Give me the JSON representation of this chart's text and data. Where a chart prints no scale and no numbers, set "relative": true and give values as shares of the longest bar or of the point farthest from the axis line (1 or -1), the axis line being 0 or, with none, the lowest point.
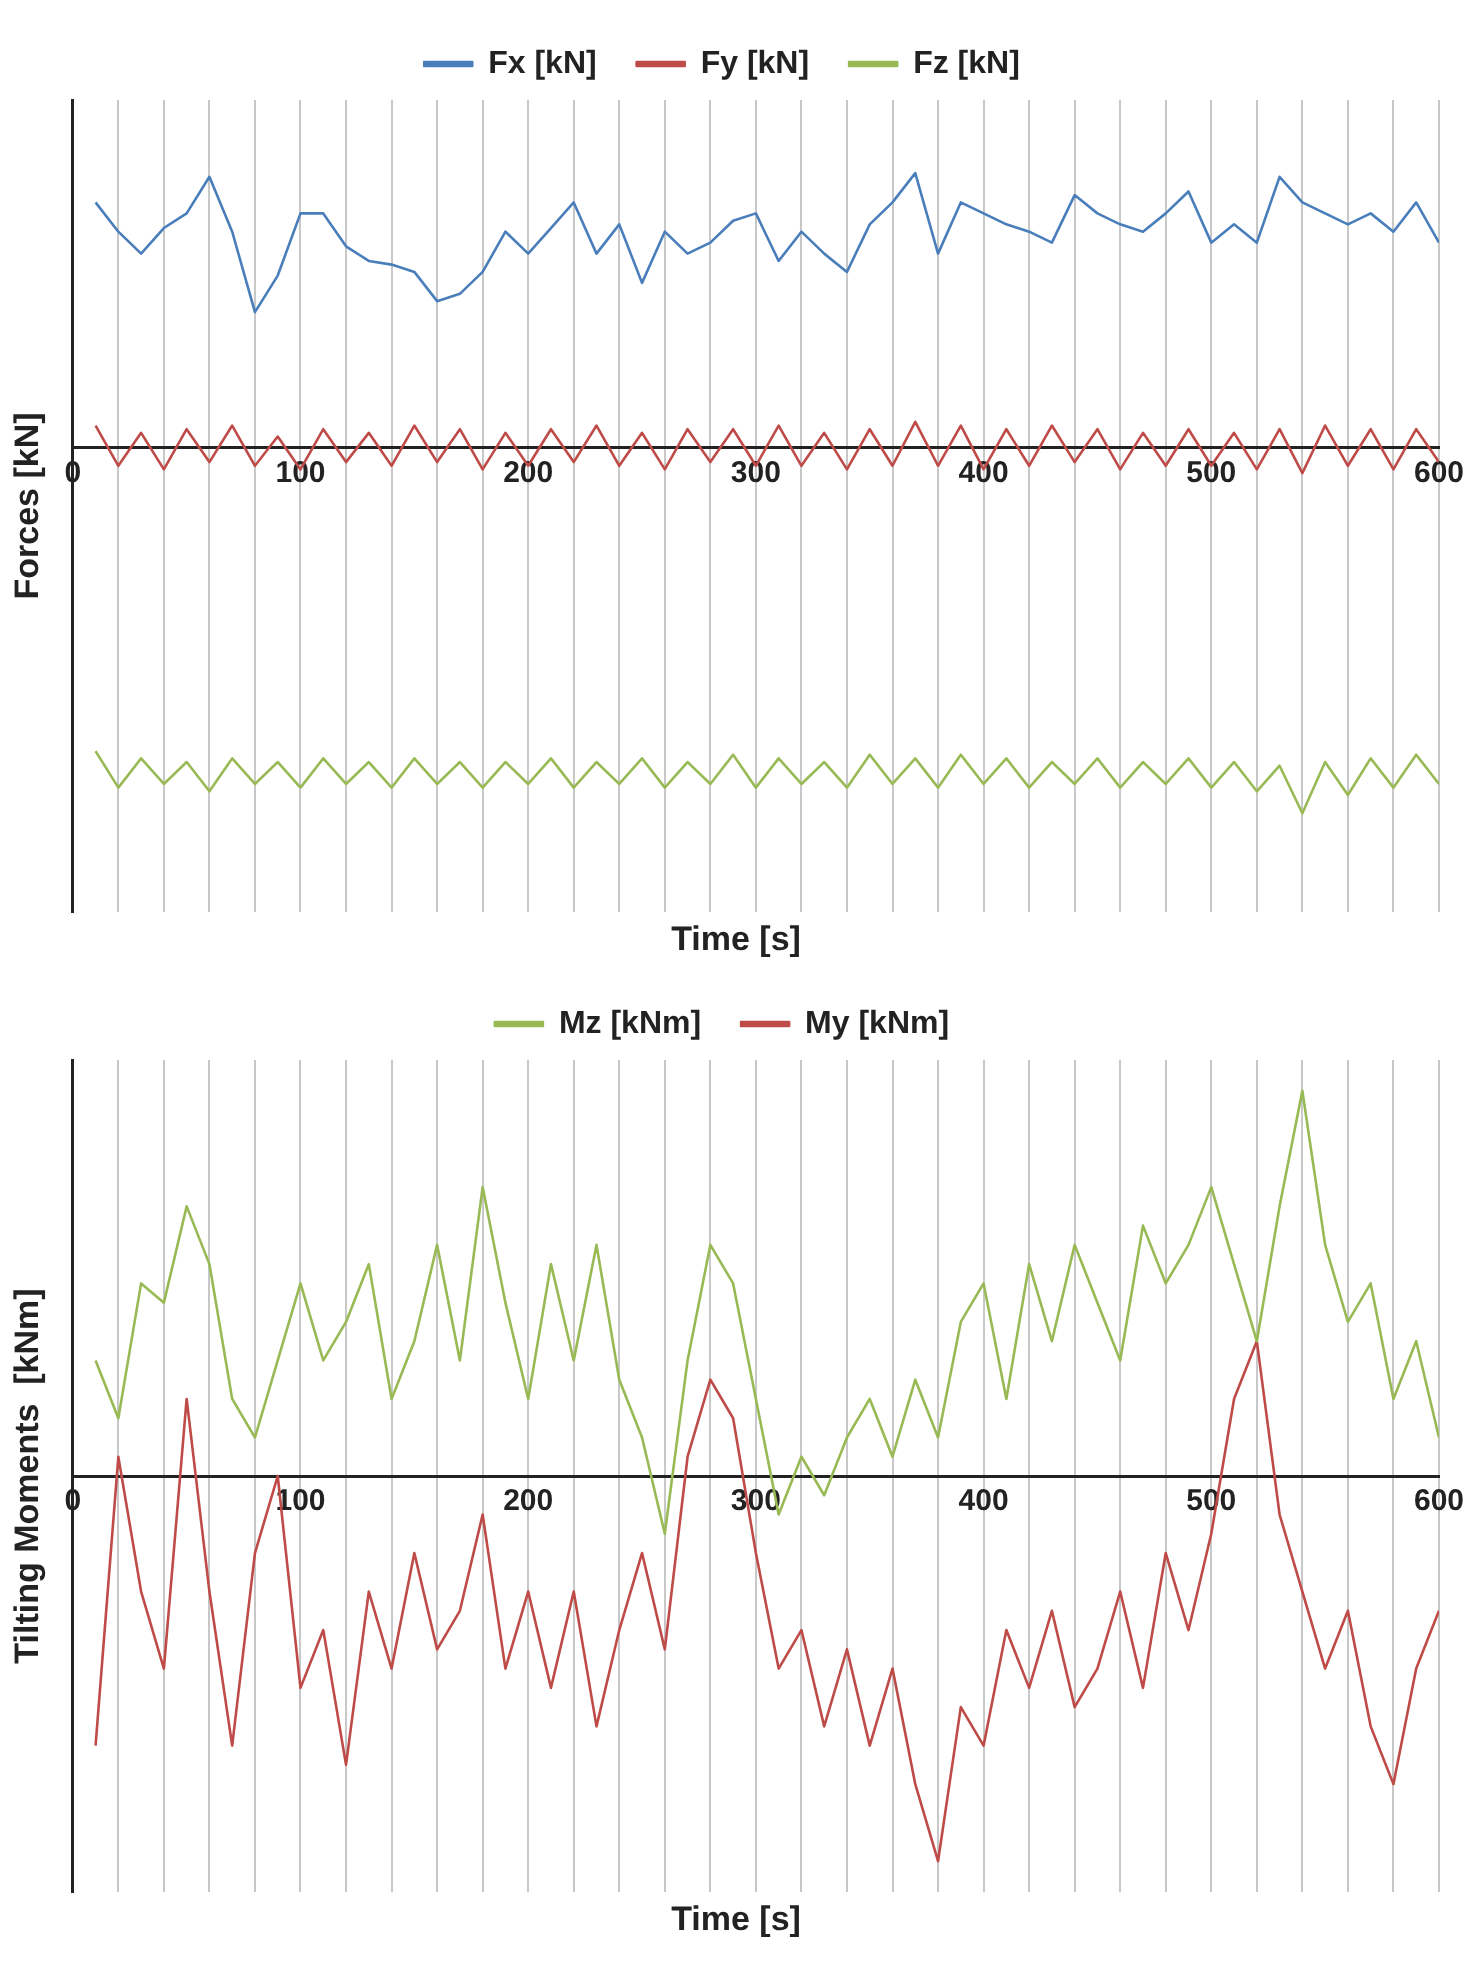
{
  "chart_data": [
    {
      "type": "line",
      "xlabel": "Time [s]",
      "ylabel": "Forces [kN]",
      "relative": true,
      "grid": "x",
      "legend": "top",
      "marker": "none",
      "line_style": "solid",
      "xlim": [
        0,
        600
      ],
      "xticks": [
        0,
        {
          "value": 20,
          "label": null
        },
        {
          "value": 40,
          "label": null
        },
        {
          "value": 60,
          "label": null
        },
        {
          "value": 80,
          "label": null
        },
        100,
        {
          "value": 120,
          "label": null
        },
        {
          "value": 140,
          "label": null
        },
        {
          "value": 160,
          "label": null
        },
        {
          "value": 180,
          "label": null
        },
        200,
        {
          "value": 220,
          "label": null
        },
        {
          "value": 240,
          "label": null
        },
        {
          "value": 260,
          "label": null
        },
        {
          "value": 280,
          "label": null
        },
        300,
        {
          "value": 320,
          "label": null
        },
        {
          "value": 340,
          "label": null
        },
        {
          "value": 360,
          "label": null
        },
        {
          "value": 380,
          "label": null
        },
        400,
        {
          "value": 420,
          "label": null
        },
        {
          "value": 440,
          "label": null
        },
        {
          "value": 460,
          "label": null
        },
        {
          "value": 480,
          "label": null
        },
        500,
        {
          "value": 520,
          "label": null
        },
        {
          "value": 540,
          "label": null
        },
        {
          "value": 560,
          "label": null
        },
        {
          "value": 580,
          "label": null
        },
        600
      ],
      "x": [
        10,
        20,
        30,
        40,
        50,
        60,
        70,
        80,
        90,
        100,
        110,
        120,
        130,
        140,
        150,
        160,
        170,
        180,
        190,
        200,
        210,
        220,
        230,
        240,
        250,
        260,
        270,
        280,
        290,
        300,
        310,
        320,
        330,
        340,
        350,
        360,
        370,
        380,
        390,
        400,
        410,
        420,
        430,
        440,
        450,
        460,
        470,
        480,
        490,
        500,
        510,
        520,
        530,
        540,
        550,
        560,
        570,
        580,
        590,
        600
      ],
      "series": [
        {
          "name": "Fx [kN]",
          "color": "#4a7ebb",
          "values": [
            0.67,
            0.59,
            0.53,
            0.6,
            0.64,
            0.74,
            0.59,
            0.37,
            0.47,
            0.64,
            0.64,
            0.55,
            0.51,
            0.5,
            0.48,
            0.4,
            0.42,
            0.48,
            0.59,
            0.53,
            0.6,
            0.67,
            0.53,
            0.61,
            0.45,
            0.59,
            0.53,
            0.56,
            0.62,
            0.64,
            0.51,
            0.59,
            0.53,
            0.48,
            0.61,
            0.67,
            0.75,
            0.53,
            0.67,
            0.64,
            0.61,
            0.59,
            0.56,
            0.69,
            0.64,
            0.61,
            0.59,
            0.64,
            0.7,
            0.56,
            0.61,
            0.56,
            0.74,
            0.67,
            0.64,
            0.61,
            0.64,
            0.59,
            0.67,
            0.56
          ]
        },
        {
          "name": "Fy [kN]",
          "color": "#be4b48",
          "values": [
            0.06,
            -0.05,
            0.04,
            -0.06,
            0.05,
            -0.04,
            0.06,
            -0.05,
            0.03,
            -0.06,
            0.05,
            -0.04,
            0.04,
            -0.05,
            0.06,
            -0.04,
            0.05,
            -0.06,
            0.04,
            -0.05,
            0.05,
            -0.04,
            0.06,
            -0.05,
            0.04,
            -0.06,
            0.05,
            -0.04,
            0.05,
            -0.05,
            0.06,
            -0.05,
            0.04,
            -0.06,
            0.05,
            -0.05,
            0.07,
            -0.05,
            0.06,
            -0.06,
            0.05,
            -0.05,
            0.06,
            -0.04,
            0.05,
            -0.06,
            0.04,
            -0.05,
            0.05,
            -0.05,
            0.04,
            -0.06,
            0.05,
            -0.07,
            0.06,
            -0.05,
            0.05,
            -0.06,
            0.05,
            -0.04
          ]
        },
        {
          "name": "Fz [kN]",
          "color": "#98b954",
          "values": [
            -0.83,
            -0.93,
            -0.85,
            -0.92,
            -0.86,
            -0.94,
            -0.85,
            -0.92,
            -0.86,
            -0.93,
            -0.85,
            -0.92,
            -0.86,
            -0.93,
            -0.85,
            -0.92,
            -0.86,
            -0.93,
            -0.86,
            -0.92,
            -0.85,
            -0.93,
            -0.86,
            -0.92,
            -0.85,
            -0.93,
            -0.86,
            -0.92,
            -0.84,
            -0.93,
            -0.85,
            -0.92,
            -0.86,
            -0.93,
            -0.84,
            -0.92,
            -0.85,
            -0.93,
            -0.84,
            -0.92,
            -0.85,
            -0.93,
            -0.86,
            -0.92,
            -0.85,
            -0.93,
            -0.86,
            -0.92,
            -0.85,
            -0.93,
            -0.86,
            -0.94,
            -0.87,
            -1.0,
            -0.86,
            -0.95,
            -0.85,
            -0.93,
            -0.84,
            -0.92
          ]
        }
      ]
    },
    {
      "type": "line",
      "xlabel": "Time [s]",
      "ylabel": "Tilting Moments  [kNm]",
      "relative": true,
      "grid": "x",
      "legend": "top",
      "marker": "none",
      "line_style": "solid",
      "xlim": [
        0,
        600
      ],
      "xticks": [
        0,
        {
          "value": 20,
          "label": null
        },
        {
          "value": 40,
          "label": null
        },
        {
          "value": 60,
          "label": null
        },
        {
          "value": 80,
          "label": null
        },
        100,
        {
          "value": 120,
          "label": null
        },
        {
          "value": 140,
          "label": null
        },
        {
          "value": 160,
          "label": null
        },
        {
          "value": 180,
          "label": null
        },
        200,
        {
          "value": 220,
          "label": null
        },
        {
          "value": 240,
          "label": null
        },
        {
          "value": 260,
          "label": null
        },
        {
          "value": 280,
          "label": null
        },
        300,
        {
          "value": 320,
          "label": null
        },
        {
          "value": 340,
          "label": null
        },
        {
          "value": 360,
          "label": null
        },
        {
          "value": 380,
          "label": null
        },
        400,
        {
          "value": 420,
          "label": null
        },
        {
          "value": 440,
          "label": null
        },
        {
          "value": 460,
          "label": null
        },
        {
          "value": 480,
          "label": null
        },
        500,
        {
          "value": 520,
          "label": null
        },
        {
          "value": 540,
          "label": null
        },
        {
          "value": 560,
          "label": null
        },
        {
          "value": 580,
          "label": null
        },
        600
      ],
      "x": [
        10,
        20,
        30,
        40,
        50,
        60,
        70,
        80,
        90,
        100,
        110,
        120,
        130,
        140,
        150,
        160,
        170,
        180,
        190,
        200,
        210,
        220,
        230,
        240,
        250,
        260,
        270,
        280,
        290,
        300,
        310,
        320,
        330,
        340,
        350,
        360,
        370,
        380,
        390,
        400,
        410,
        420,
        430,
        440,
        450,
        460,
        470,
        480,
        490,
        500,
        510,
        520,
        530,
        540,
        550,
        560,
        570,
        580,
        590,
        600
      ],
      "series": [
        {
          "name": "Mz [kNm]",
          "color": "#98b954",
          "values": [
            0.3,
            0.15,
            0.5,
            0.45,
            0.7,
            0.55,
            0.2,
            0.1,
            0.3,
            0.5,
            0.3,
            0.4,
            0.55,
            0.2,
            0.35,
            0.6,
            0.3,
            0.75,
            0.45,
            0.2,
            0.55,
            0.3,
            0.6,
            0.25,
            0.1,
            -0.15,
            0.3,
            0.6,
            0.5,
            0.2,
            -0.1,
            0.05,
            -0.05,
            0.1,
            0.2,
            0.05,
            0.25,
            0.1,
            0.4,
            0.5,
            0.2,
            0.55,
            0.35,
            0.6,
            0.45,
            0.3,
            0.65,
            0.5,
            0.6,
            0.75,
            0.55,
            0.35,
            0.7,
            1.0,
            0.6,
            0.4,
            0.5,
            0.2,
            0.35,
            0.1
          ]
        },
        {
          "name": "My [kNm]",
          "color": "#be4b48",
          "values": [
            -0.7,
            0.05,
            -0.3,
            -0.5,
            0.2,
            -0.3,
            -0.7,
            -0.2,
            0.0,
            -0.55,
            -0.4,
            -0.75,
            -0.3,
            -0.5,
            -0.2,
            -0.45,
            -0.35,
            -0.1,
            -0.5,
            -0.3,
            -0.55,
            -0.3,
            -0.65,
            -0.4,
            -0.2,
            -0.45,
            0.05,
            0.25,
            0.15,
            -0.2,
            -0.5,
            -0.4,
            -0.65,
            -0.45,
            -0.7,
            -0.5,
            -0.8,
            -1.0,
            -0.6,
            -0.7,
            -0.4,
            -0.55,
            -0.35,
            -0.6,
            -0.5,
            -0.3,
            -0.55,
            -0.2,
            -0.4,
            -0.15,
            0.2,
            0.35,
            -0.1,
            -0.3,
            -0.5,
            -0.35,
            -0.65,
            -0.8,
            -0.5,
            -0.35
          ]
        }
      ]
    }
  ]
}
